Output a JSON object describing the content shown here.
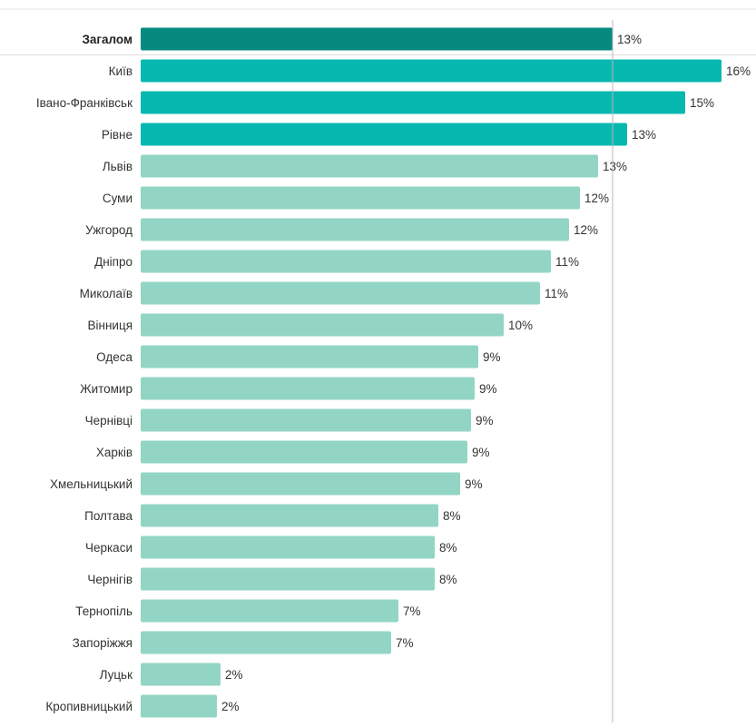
{
  "chart_data": {
    "type": "bar",
    "orientation": "horizontal",
    "value_suffix": "%",
    "xlim": [
      0,
      16.8
    ],
    "grid": false,
    "legend": "none",
    "reference_value": 13,
    "colors": {
      "total": "#068a80",
      "highlight": "#07b8b0",
      "default": "#92d5c5",
      "reference_line": "#b8b8b8",
      "divider": "#dddddd"
    },
    "categories": [
      "Загалом",
      "Київ",
      "Івано-Франківськ",
      "Рівне",
      "Львів",
      "Суми",
      "Ужгород",
      "Дніпро",
      "Миколаїв",
      "Вінниця",
      "Одеса",
      "Житомир",
      "Чернівці",
      "Харків",
      "Хмельницький",
      "Полтава",
      "Черкаси",
      "Чернігів",
      "Тернопіль",
      "Запоріжжя",
      "Луцьк",
      "Кропивницький"
    ],
    "values": [
      13,
      16,
      15,
      13.4,
      12.6,
      12.1,
      11.8,
      11.3,
      11,
      10,
      9.3,
      9.2,
      9.1,
      9,
      8.8,
      8.2,
      8.1,
      8.1,
      7.1,
      6.9,
      2.2,
      2.1
    ],
    "value_labels": [
      "13%",
      "16%",
      "15%",
      "13%",
      "13%",
      "12%",
      "12%",
      "11%",
      "11%",
      "10%",
      "9%",
      "9%",
      "9%",
      "9%",
      "9%",
      "8%",
      "8%",
      "8%",
      "7%",
      "7%",
      "2%",
      "2%"
    ],
    "bar_style": [
      "total",
      "highlight",
      "highlight",
      "highlight",
      "default",
      "default",
      "default",
      "default",
      "default",
      "default",
      "default",
      "default",
      "default",
      "default",
      "default",
      "default",
      "default",
      "default",
      "default",
      "default",
      "default",
      "default"
    ]
  }
}
